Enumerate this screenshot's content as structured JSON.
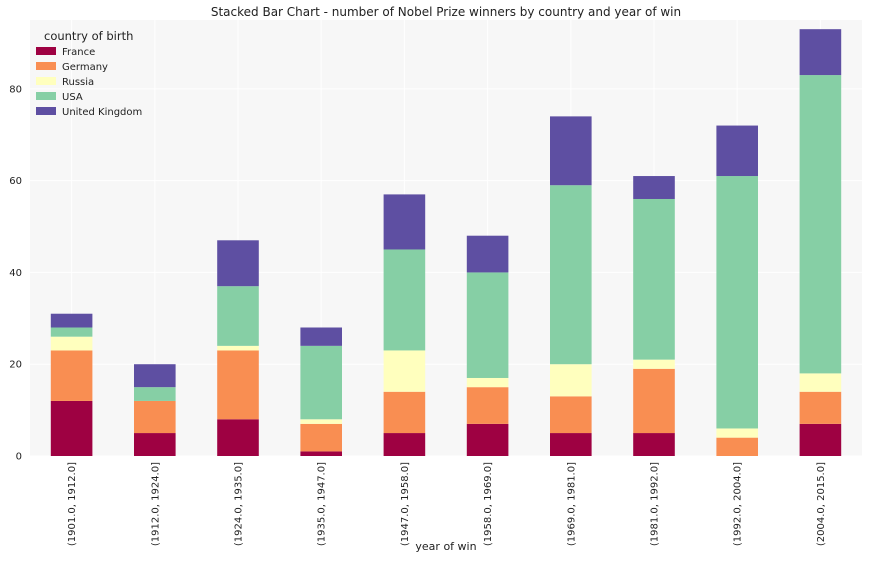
{
  "chart_data": {
    "type": "bar",
    "stacked": true,
    "title": "Stacked Bar Chart - number of Nobel Prize winners by country and year of win",
    "xlabel": "year of win",
    "ylabel": "",
    "categories": [
      "(1901.0, 1912.0]",
      "(1912.0, 1924.0]",
      "(1924.0, 1935.0]",
      "(1935.0, 1947.0]",
      "(1947.0, 1958.0]",
      "(1958.0, 1969.0]",
      "(1969.0, 1981.0]",
      "(1981.0, 1992.0]",
      "(1992.0, 2004.0]",
      "(2004.0, 2015.0]"
    ],
    "series": [
      {
        "name": "France",
        "color": "#9e0142",
        "values": [
          12,
          5,
          8,
          1,
          5,
          7,
          5,
          5,
          0,
          7
        ]
      },
      {
        "name": "Germany",
        "color": "#f98e52",
        "values": [
          11,
          7,
          15,
          6,
          9,
          8,
          8,
          14,
          4,
          7
        ]
      },
      {
        "name": "Russia",
        "color": "#ffffbe",
        "values": [
          3,
          0,
          1,
          1,
          9,
          2,
          7,
          2,
          2,
          4
        ]
      },
      {
        "name": "USA",
        "color": "#86cfa5",
        "values": [
          2,
          3,
          13,
          16,
          22,
          23,
          39,
          35,
          55,
          65
        ]
      },
      {
        "name": "United Kingdom",
        "color": "#5e4fa2",
        "values": [
          3,
          5,
          10,
          4,
          12,
          8,
          15,
          5,
          11,
          10
        ]
      }
    ],
    "ylim": [
      0,
      95
    ],
    "yticks": [
      0,
      20,
      40,
      60,
      80
    ],
    "legend_title": "country of birth",
    "legend_position": "top-left",
    "grid": true
  }
}
